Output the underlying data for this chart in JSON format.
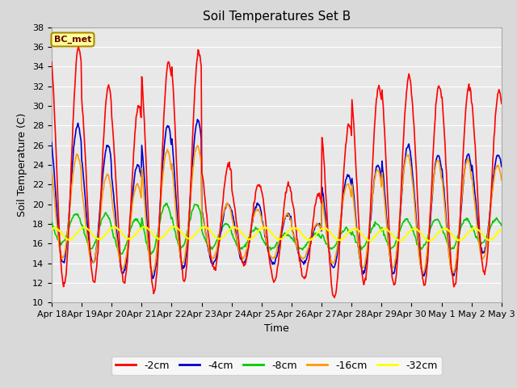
{
  "title": "Soil Temperatures Set B",
  "xlabel": "Time",
  "ylabel": "Soil Temperature (C)",
  "ylim": [
    10,
    38
  ],
  "yticks": [
    10,
    12,
    14,
    16,
    18,
    20,
    22,
    24,
    26,
    28,
    30,
    32,
    34,
    36,
    38
  ],
  "xtick_labels": [
    "Apr 18",
    "Apr 19",
    "Apr 20",
    "Apr 21",
    "Apr 22",
    "Apr 23",
    "Apr 24",
    "Apr 25",
    "Apr 26",
    "Apr 27",
    "Apr 28",
    "Apr 29",
    "Apr 30",
    "May 1",
    "May 2",
    "May 3"
  ],
  "series_labels": [
    "-2cm",
    "-4cm",
    "-8cm",
    "-16cm",
    "-32cm"
  ],
  "series_colors": [
    "#ff0000",
    "#0000cc",
    "#00cc00",
    "#ff9900",
    "#ffff00"
  ],
  "line_widths": [
    1.2,
    1.2,
    1.2,
    1.2,
    1.5
  ],
  "annotation_text": "BC_met",
  "annotation_bg": "#ffff99",
  "annotation_border": "#aa8800",
  "plot_bg": "#e8e8e8",
  "grid_color": "#ffffff",
  "title_fontsize": 11,
  "label_fontsize": 9,
  "tick_fontsize": 8,
  "day_peaks_2cm": [
    36,
    32,
    30,
    34.5,
    35.5,
    24,
    22,
    22,
    21,
    28,
    32,
    33,
    32,
    32,
    31.5
  ],
  "day_mins_2cm": [
    11.8,
    12,
    12,
    11,
    12,
    13.5,
    13.8,
    12.2,
    12.5,
    10.5,
    12,
    11.8,
    11.8,
    11.8,
    13
  ],
  "day_peaks_4cm": [
    28,
    26,
    24,
    28,
    28.5,
    20,
    20,
    19,
    18,
    23,
    24,
    26,
    25,
    25,
    25
  ],
  "day_mins_4cm": [
    14,
    14,
    13,
    12.5,
    13.5,
    14,
    14,
    14,
    14,
    13.5,
    13,
    13,
    12.8,
    12.8,
    15
  ],
  "day_peaks_8cm": [
    19,
    19,
    18.5,
    20,
    20,
    18,
    17.5,
    17,
    17,
    17.5,
    18,
    18.5,
    18.5,
    18.5,
    18.5
  ],
  "day_mins_8cm": [
    16,
    15.5,
    15,
    15,
    15.5,
    15.5,
    15.5,
    15.5,
    15.5,
    15.5,
    15.5,
    15.5,
    15.5,
    15.5,
    16
  ],
  "day_peaks_16cm": [
    25,
    23,
    22,
    25.5,
    26,
    20,
    19.5,
    19,
    18,
    22,
    23.5,
    25,
    24.5,
    24.5,
    24
  ],
  "day_mins_16cm": [
    14.5,
    14,
    13.5,
    13,
    14,
    14.5,
    14.5,
    14.5,
    14.5,
    14,
    13.5,
    13.5,
    13,
    13,
    14.5
  ],
  "fig_width": 6.4,
  "fig_height": 4.8,
  "dpi": 100
}
